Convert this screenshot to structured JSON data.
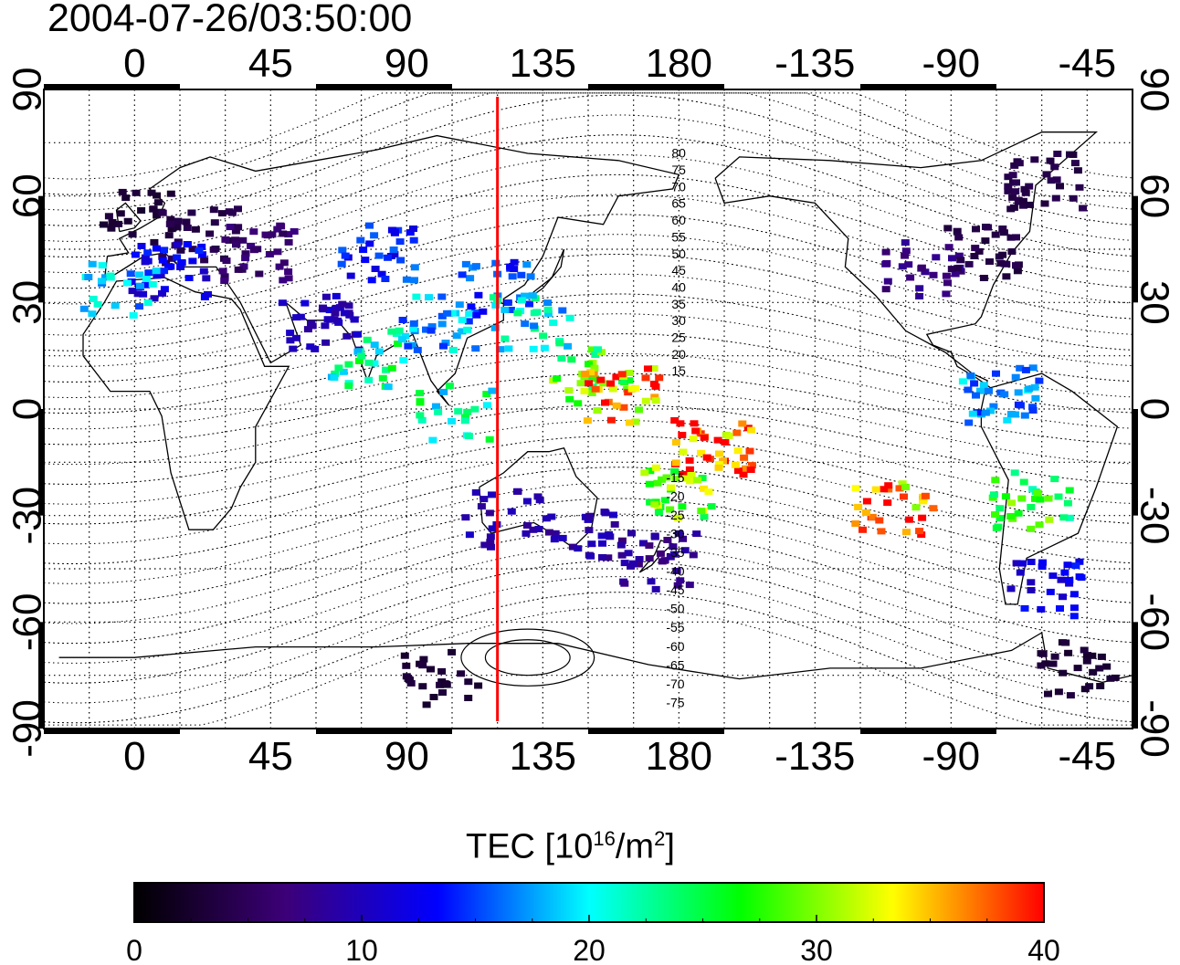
{
  "timestamp": "2004-07-26/03:50:00",
  "map": {
    "x_ticks": [
      "0",
      "45",
      "90",
      "135",
      "180",
      "-135",
      "-90",
      "-45"
    ],
    "y_ticks": [
      "90",
      "60",
      "30",
      "0",
      "-30",
      "-60",
      "-90"
    ],
    "dip_labels_north": [
      "80",
      "75",
      "70",
      "65",
      "60",
      "55",
      "50",
      "45",
      "40",
      "35",
      "30",
      "25",
      "20",
      "15"
    ],
    "dip_labels_south": [
      "15",
      "20",
      "25",
      "30",
      "35",
      "40",
      "45",
      "50",
      "55",
      "60",
      "65",
      "70",
      "75"
    ],
    "red_line_lon": 120,
    "colors": {
      "red_line": "#ff0000",
      "frame": "#000000",
      "grid": "#000000"
    }
  },
  "colorbar": {
    "title_prefix": "TEC  [10",
    "title_exp1": "16",
    "title_mid": "/m",
    "title_exp2": "2",
    "title_suffix": "]",
    "tick_labels": [
      "0",
      "10",
      "20",
      "30",
      "40"
    ],
    "range": [
      0,
      40
    ],
    "stops": [
      "#000000",
      "#3c0078",
      "#0000ff",
      "#00ffff",
      "#00ff00",
      "#ffff00",
      "#ff0000"
    ]
  },
  "chart_data": {
    "type": "heatmap",
    "title": "2004-07-26/03:50:00",
    "xlabel": "",
    "ylabel": "",
    "x_range": [
      -30,
      330
    ],
    "y_range": [
      -90,
      90
    ],
    "value_range": [
      0,
      40
    ],
    "cells": [
      {
        "lon": 0,
        "lat": 55,
        "tec": 3
      },
      {
        "lon": 20,
        "lat": 50,
        "tec": 4
      },
      {
        "lon": 10,
        "lat": 40,
        "tec": 12
      },
      {
        "lon": -5,
        "lat": 35,
        "tec": 18
      },
      {
        "lon": 40,
        "lat": 45,
        "tec": 6
      },
      {
        "lon": 60,
        "lat": 25,
        "tec": 10
      },
      {
        "lon": 75,
        "lat": 15,
        "tec": 22
      },
      {
        "lon": 80,
        "lat": 45,
        "tec": 14
      },
      {
        "lon": 100,
        "lat": 25,
        "tec": 18
      },
      {
        "lon": 105,
        "lat": 0,
        "tec": 22
      },
      {
        "lon": 120,
        "lat": 35,
        "tec": 15
      },
      {
        "lon": 130,
        "lat": 25,
        "tec": 20
      },
      {
        "lon": 150,
        "lat": 10,
        "tec": 27
      },
      {
        "lon": 160,
        "lat": 5,
        "tec": 36
      },
      {
        "lon": 190,
        "lat": -10,
        "tec": 39
      },
      {
        "lon": 180,
        "lat": -22,
        "tec": 29
      },
      {
        "lon": 120,
        "lat": -30,
        "tec": 9
      },
      {
        "lon": 145,
        "lat": -35,
        "tec": 9
      },
      {
        "lon": 172,
        "lat": -42,
        "tec": 8
      },
      {
        "lon": 260,
        "lat": 40,
        "tec": 7
      },
      {
        "lon": 280,
        "lat": 45,
        "tec": 4
      },
      {
        "lon": 300,
        "lat": 65,
        "tec": 4
      },
      {
        "lon": 285,
        "lat": 5,
        "tec": 17
      },
      {
        "lon": 295,
        "lat": -25,
        "tec": 26
      },
      {
        "lon": 300,
        "lat": -50,
        "tec": 12
      },
      {
        "lon": 250,
        "lat": -28,
        "tec": 37
      },
      {
        "lon": 100,
        "lat": -75,
        "tec": 3
      },
      {
        "lon": 310,
        "lat": -72,
        "tec": 3
      }
    ]
  }
}
